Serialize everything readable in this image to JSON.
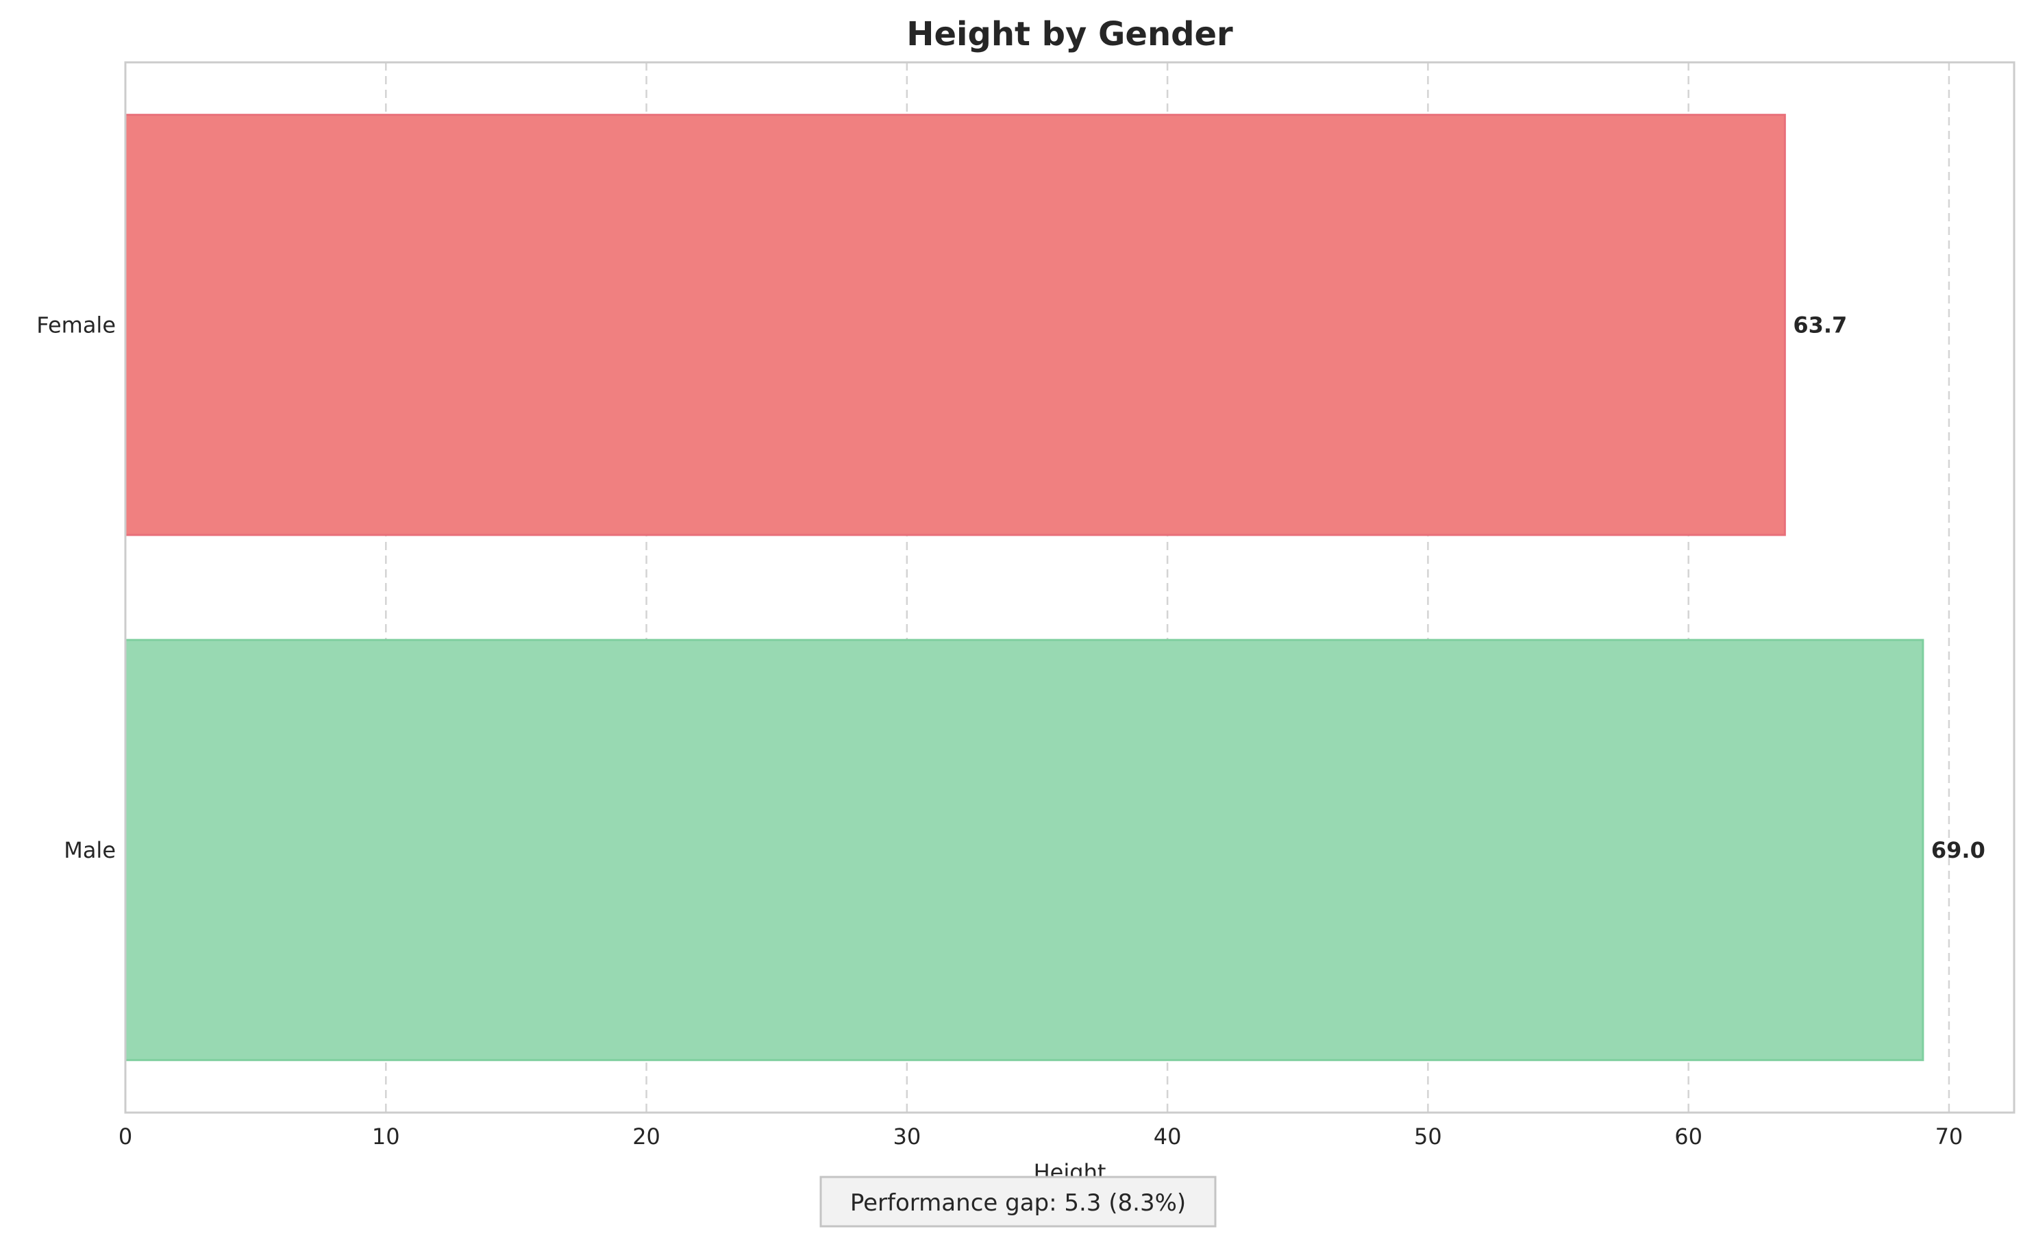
{
  "chart_data": {
    "type": "bar",
    "orientation": "horizontal",
    "title": "Height by Gender",
    "xlabel": "Height",
    "ylabel": "",
    "categories": [
      "Female",
      "Male"
    ],
    "values": [
      63.7,
      69.0
    ],
    "value_labels": [
      "63.7",
      "69.0"
    ],
    "bar_colors": [
      "#f08080",
      "#98d9b2"
    ],
    "bar_edge_colors": [
      "#e8707a",
      "#7fcf9f"
    ],
    "xlim": [
      0,
      72.5
    ],
    "xticks": [
      0,
      10,
      20,
      30,
      40,
      50,
      60,
      70
    ],
    "xtick_labels": [
      "0",
      "10",
      "20",
      "30",
      "40",
      "50",
      "60",
      "70"
    ],
    "grid": "x-dashed",
    "annotation": "Performance gap: 5.3 (8.3%)"
  }
}
